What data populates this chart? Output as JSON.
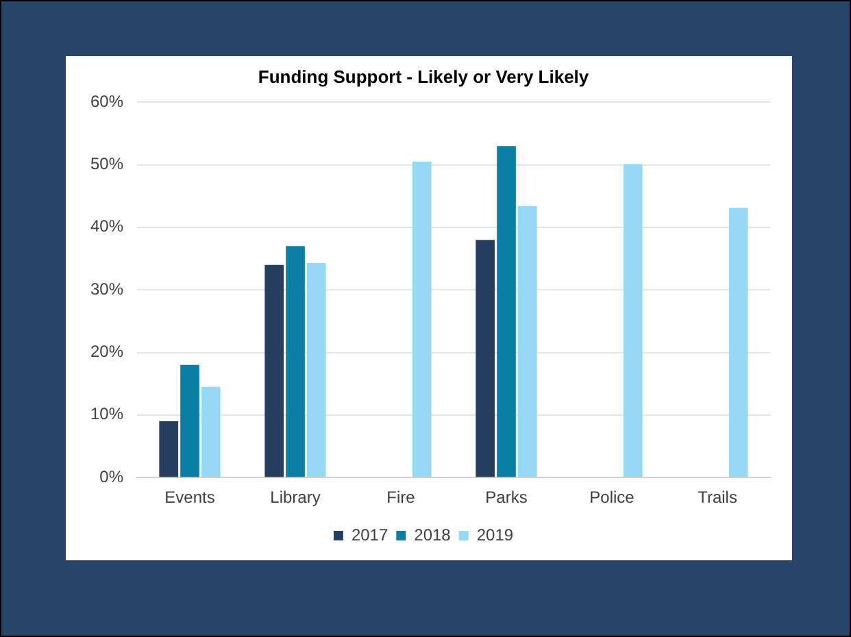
{
  "chart_data": {
    "type": "bar",
    "title": "Funding Support - Likely or Very Likely",
    "categories": [
      "Events",
      "Library",
      "Fire",
      "Parks",
      "Police",
      "Trails"
    ],
    "series": [
      {
        "name": "2017",
        "color": "#263f61",
        "values": [
          9,
          34,
          null,
          38,
          null,
          null
        ]
      },
      {
        "name": "2018",
        "color": "#0b7fa6",
        "values": [
          18,
          37,
          null,
          53,
          null,
          null
        ]
      },
      {
        "name": "2019",
        "color": "#97d9f5",
        "values": [
          14.5,
          34.3,
          50.5,
          43.4,
          50.1,
          43.1
        ]
      }
    ],
    "ylim": [
      0,
      60
    ],
    "yticks": [
      {
        "value": 0,
        "label": "0%"
      },
      {
        "value": 10,
        "label": "10%"
      },
      {
        "value": 20,
        "label": "20%"
      },
      {
        "value": 30,
        "label": "30%"
      },
      {
        "value": 40,
        "label": "40%"
      },
      {
        "value": 50,
        "label": "50%"
      },
      {
        "value": 60,
        "label": "60%"
      }
    ],
    "grid": "y",
    "legend": "bottom"
  }
}
